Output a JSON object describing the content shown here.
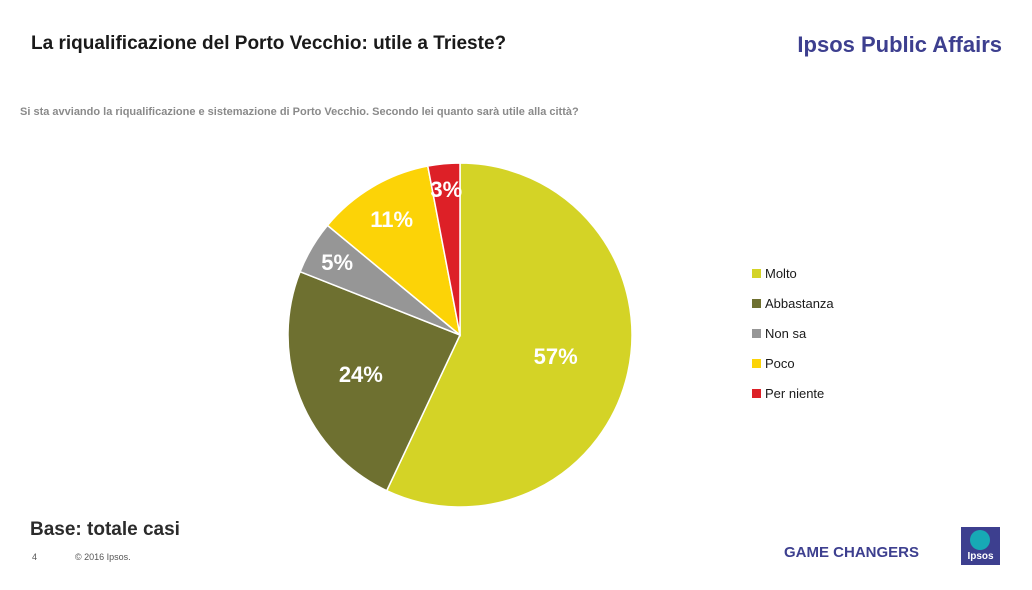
{
  "header": {
    "title": "La riqualificazione del Porto Vecchio: utile a Trieste?",
    "brand": "Ipsos Public Affairs"
  },
  "subtitle": "Si sta avviando la riqualificazione e sistemazione di Porto Vecchio. Secondo lei quanto sarà utile alla città?",
  "chart_data": {
    "type": "pie",
    "title": "La riqualificazione del Porto Vecchio: utile a Trieste?",
    "question": "Si sta avviando la riqualificazione e sistemazione di Porto Vecchio. Secondo lei quanto sarà utile alla città?",
    "categories": [
      "Molto",
      "Abbastanza",
      "Non sa",
      "Poco",
      "Per niente"
    ],
    "values": [
      57,
      24,
      5,
      11,
      3
    ],
    "labels": [
      "57%",
      "24%",
      "5%",
      "11%",
      "3%"
    ],
    "colors": [
      "#d4d326",
      "#6e7030",
      "#969696",
      "#fcd307",
      "#dd2027"
    ],
    "unit": "%",
    "legend_position": "right"
  },
  "footer": {
    "base": "Base: totale casi",
    "page_number": "4",
    "copyright": "© 2016 Ipsos.",
    "tagline": "GAME CHANGERS",
    "logo_text": "Ipsos"
  }
}
